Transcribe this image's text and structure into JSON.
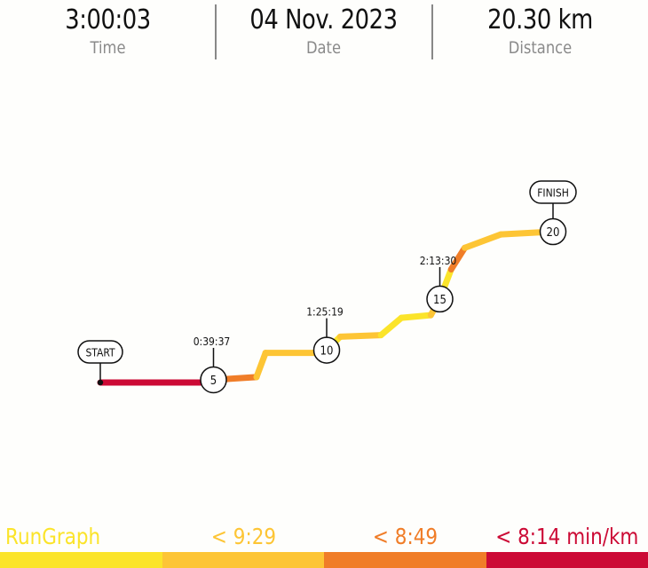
{
  "stats": {
    "time": {
      "value": "3:00:03",
      "label": "Time"
    },
    "date": {
      "value": "04 Nov. 2023",
      "label": "Date"
    },
    "distance": {
      "value": "20.30 km",
      "label": "Distance"
    }
  },
  "colors": {
    "yellow": "#fbe42a",
    "gold": "#fdc535",
    "orange": "#f07d28",
    "red": "#cc0a35"
  },
  "legend": [
    {
      "label": "RunGraph",
      "color": "#fbe42a",
      "text_color": "#fbe42a",
      "align": "left"
    },
    {
      "label": "< 9:29",
      "color": "#fdc535",
      "text_color": "#fdc535",
      "align": "center"
    },
    {
      "label": "< 8:49",
      "color": "#f07d28",
      "text_color": "#f07d28",
      "align": "center"
    },
    {
      "label": "< 8:14 min/km",
      "color": "#cc0a35",
      "text_color": "#cc0a35",
      "align": "right"
    }
  ],
  "chart_data": {
    "type": "line",
    "x_unit": "km",
    "y_unit": "elapsed",
    "start_label": "START",
    "finish_label": "FINISH",
    "segments": [
      {
        "x0": 0,
        "x1": 4.9,
        "y0": 0.0,
        "y1": 0.0,
        "pace": "red"
      },
      {
        "x0": 4.9,
        "x1": 5.0,
        "y0": 0.0,
        "y1": 0.05,
        "pace": "yellow"
      },
      {
        "x0": 5.0,
        "x1": 6.9,
        "y0": 0.05,
        "y1": 0.1,
        "pace": "orange"
      },
      {
        "x0": 6.9,
        "x1": 7.3,
        "y0": 0.1,
        "y1": 0.55,
        "pace": "gold"
      },
      {
        "x0": 7.3,
        "x1": 9.7,
        "y0": 0.55,
        "y1": 0.55,
        "pace": "gold"
      },
      {
        "x0": 9.7,
        "x1": 10.0,
        "y0": 0.55,
        "y1": 0.6,
        "pace": "yellow"
      },
      {
        "x0": 10.0,
        "x1": 10.6,
        "y0": 0.6,
        "y1": 0.85,
        "pace": "yellow"
      },
      {
        "x0": 10.6,
        "x1": 12.4,
        "y0": 0.85,
        "y1": 0.88,
        "pace": "gold"
      },
      {
        "x0": 12.4,
        "x1": 13.3,
        "y0": 0.88,
        "y1": 1.2,
        "pace": "yellow"
      },
      {
        "x0": 13.3,
        "x1": 14.6,
        "y0": 1.2,
        "y1": 1.25,
        "pace": "yellow"
      },
      {
        "x0": 14.6,
        "x1": 15.0,
        "y0": 1.25,
        "y1": 1.55,
        "pace": "gold"
      },
      {
        "x0": 15.0,
        "x1": 15.5,
        "y0": 1.55,
        "y1": 2.1,
        "pace": "yellow"
      },
      {
        "x0": 15.5,
        "x1": 16.1,
        "y0": 2.1,
        "y1": 2.5,
        "pace": "orange"
      },
      {
        "x0": 16.1,
        "x1": 17.7,
        "y0": 2.5,
        "y1": 2.75,
        "pace": "gold"
      },
      {
        "x0": 17.7,
        "x1": 20.0,
        "y0": 2.75,
        "y1": 2.8,
        "pace": "gold"
      }
    ],
    "markers": [
      {
        "km": "5",
        "x": 5.0,
        "y": 0.05,
        "split": "0:39:37"
      },
      {
        "km": "10",
        "x": 10.0,
        "y": 0.6,
        "split": "1:25:19"
      },
      {
        "km": "15",
        "x": 15.0,
        "y": 1.55,
        "split": "2:13:30"
      },
      {
        "km": "20",
        "x": 20.0,
        "y": 2.8,
        "split": ""
      }
    ]
  }
}
